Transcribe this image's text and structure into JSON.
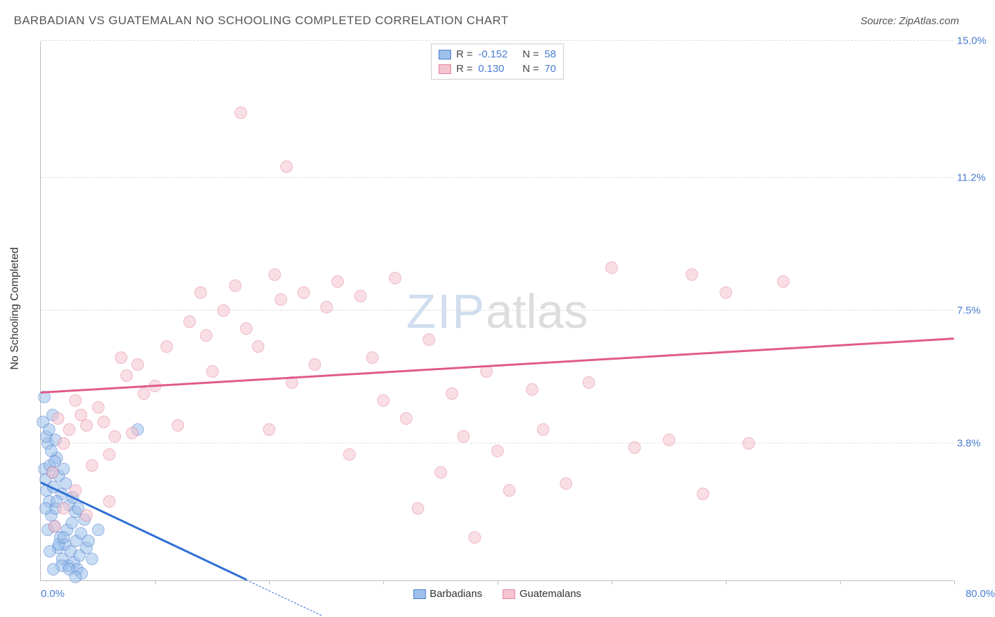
{
  "title": "BARBADIAN VS GUATEMALAN NO SCHOOLING COMPLETED CORRELATION CHART",
  "source_label": "Source: ZipAtlas.com",
  "y_axis_label": "No Schooling Completed",
  "watermark": {
    "part1": "ZIP",
    "part2": "atlas"
  },
  "chart": {
    "type": "scatter",
    "xlim": [
      0,
      80
    ],
    "ylim": [
      0,
      15
    ],
    "x_min_label": "0.0%",
    "x_max_label": "80.0%",
    "y_ticks": [
      3.8,
      7.5,
      11.2,
      15.0
    ],
    "y_tick_labels": [
      "3.8%",
      "7.5%",
      "11.2%",
      "15.0%"
    ],
    "x_tick_positions": [
      10,
      20,
      30,
      40,
      50,
      60,
      70,
      80
    ],
    "background_color": "#ffffff",
    "grid_color": "#dddddd",
    "axis_color": "#bbbbbb",
    "tick_label_color": "#4a7bd0",
    "marker_radius": 9,
    "marker_opacity": 0.55,
    "marker_border_width": 1.2
  },
  "series": [
    {
      "name": "Barbadians",
      "fill_color": "#9cc0ea",
      "border_color": "#4a7bd0",
      "stats": {
        "R": "-0.152",
        "N": "58"
      },
      "trend": {
        "x1": 0,
        "y1": 2.7,
        "x2": 18,
        "y2": 0,
        "color": "#2e6fd3",
        "width": 2.5
      },
      "trend_extend_dash": true,
      "points": [
        [
          0.2,
          4.4
        ],
        [
          0.3,
          3.1
        ],
        [
          0.4,
          2.8
        ],
        [
          0.5,
          2.5
        ],
        [
          0.6,
          3.8
        ],
        [
          0.7,
          2.2
        ],
        [
          0.8,
          3.2
        ],
        [
          0.9,
          1.8
        ],
        [
          1.0,
          3.0
        ],
        [
          1.1,
          2.6
        ],
        [
          1.2,
          1.5
        ],
        [
          1.3,
          2.0
        ],
        [
          1.4,
          3.4
        ],
        [
          1.5,
          0.9
        ],
        [
          1.6,
          2.9
        ],
        [
          1.7,
          1.2
        ],
        [
          1.8,
          2.4
        ],
        [
          1.9,
          0.6
        ],
        [
          2.0,
          3.1
        ],
        [
          2.1,
          1.0
        ],
        [
          2.2,
          2.7
        ],
        [
          2.3,
          1.4
        ],
        [
          2.4,
          0.4
        ],
        [
          2.5,
          2.1
        ],
        [
          2.6,
          0.8
        ],
        [
          2.7,
          1.6
        ],
        [
          2.8,
          2.3
        ],
        [
          2.9,
          0.5
        ],
        [
          3.0,
          1.9
        ],
        [
          3.1,
          1.1
        ],
        [
          3.2,
          0.3
        ],
        [
          3.3,
          2.0
        ],
        [
          3.4,
          0.7
        ],
        [
          3.5,
          1.3
        ],
        [
          3.6,
          0.2
        ],
        [
          3.8,
          1.7
        ],
        [
          4.0,
          0.9
        ],
        [
          4.2,
          1.1
        ],
        [
          4.5,
          0.6
        ],
        [
          5.0,
          1.4
        ],
        [
          0.3,
          5.1
        ],
        [
          0.5,
          4.0
        ],
        [
          0.7,
          4.2
        ],
        [
          0.9,
          3.6
        ],
        [
          1.0,
          4.6
        ],
        [
          1.2,
          3.3
        ],
        [
          1.4,
          2.2
        ],
        [
          1.6,
          1.0
        ],
        [
          1.8,
          0.4
        ],
        [
          2.0,
          1.2
        ],
        [
          2.5,
          0.3
        ],
        [
          0.4,
          2.0
        ],
        [
          0.6,
          1.4
        ],
        [
          0.8,
          0.8
        ],
        [
          1.1,
          0.3
        ],
        [
          1.3,
          3.9
        ],
        [
          8.5,
          4.2
        ],
        [
          3.0,
          0.1
        ]
      ]
    },
    {
      "name": "Guatemalans",
      "fill_color": "#f5c4cf",
      "border_color": "#e37fa0",
      "stats": {
        "R": "0.130",
        "N": "70"
      },
      "trend": {
        "x1": 0,
        "y1": 5.2,
        "x2": 80,
        "y2": 6.7,
        "color": "#e05a8a",
        "width": 2.5
      },
      "trend_extend_dash": false,
      "points": [
        [
          1.0,
          3.0
        ],
        [
          1.5,
          4.5
        ],
        [
          2.0,
          3.8
        ],
        [
          2.5,
          4.2
        ],
        [
          3.0,
          5.0
        ],
        [
          3.5,
          4.6
        ],
        [
          4.0,
          4.3
        ],
        [
          4.5,
          3.2
        ],
        [
          5.0,
          4.8
        ],
        [
          5.5,
          4.4
        ],
        [
          6.0,
          3.5
        ],
        [
          6.5,
          4.0
        ],
        [
          7.0,
          6.2
        ],
        [
          7.5,
          5.7
        ],
        [
          8.0,
          4.1
        ],
        [
          8.5,
          6.0
        ],
        [
          9.0,
          5.2
        ],
        [
          10.0,
          5.4
        ],
        [
          11.0,
          6.5
        ],
        [
          12.0,
          4.3
        ],
        [
          13.0,
          7.2
        ],
        [
          14.0,
          8.0
        ],
        [
          14.5,
          6.8
        ],
        [
          15.0,
          5.8
        ],
        [
          16.0,
          7.5
        ],
        [
          17.0,
          8.2
        ],
        [
          17.5,
          13.0
        ],
        [
          18.0,
          7.0
        ],
        [
          19.0,
          6.5
        ],
        [
          20.0,
          4.2
        ],
        [
          20.5,
          8.5
        ],
        [
          21.0,
          7.8
        ],
        [
          21.5,
          11.5
        ],
        [
          22.0,
          5.5
        ],
        [
          23.0,
          8.0
        ],
        [
          24.0,
          6.0
        ],
        [
          25.0,
          7.6
        ],
        [
          26.0,
          8.3
        ],
        [
          27.0,
          3.5
        ],
        [
          28.0,
          7.9
        ],
        [
          29.0,
          6.2
        ],
        [
          30.0,
          5.0
        ],
        [
          31.0,
          8.4
        ],
        [
          32.0,
          4.5
        ],
        [
          33.0,
          2.0
        ],
        [
          34.0,
          6.7
        ],
        [
          35.0,
          3.0
        ],
        [
          36.0,
          5.2
        ],
        [
          37.0,
          4.0
        ],
        [
          38.0,
          1.2
        ],
        [
          39.0,
          5.8
        ],
        [
          40.0,
          3.6
        ],
        [
          41.0,
          2.5
        ],
        [
          43.0,
          5.3
        ],
        [
          44.0,
          4.2
        ],
        [
          46.0,
          2.7
        ],
        [
          48.0,
          5.5
        ],
        [
          50.0,
          8.7
        ],
        [
          52.0,
          3.7
        ],
        [
          55.0,
          3.9
        ],
        [
          57.0,
          8.5
        ],
        [
          58.0,
          2.4
        ],
        [
          60.0,
          8.0
        ],
        [
          62.0,
          3.8
        ],
        [
          65.0,
          8.3
        ],
        [
          2.0,
          2.0
        ],
        [
          3.0,
          2.5
        ],
        [
          1.2,
          1.5
        ],
        [
          4.0,
          1.8
        ],
        [
          6.0,
          2.2
        ]
      ]
    }
  ],
  "stats_box": {
    "R_label": "R =",
    "N_label": "N ="
  },
  "legend_labels": [
    "Barbadians",
    "Guatemalans"
  ]
}
